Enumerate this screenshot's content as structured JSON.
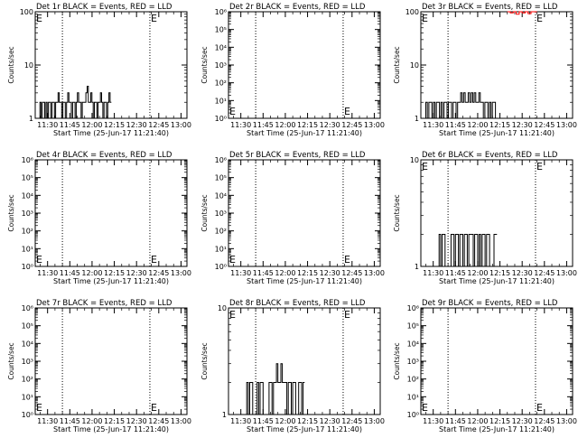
{
  "colors": {
    "events": "#000000",
    "lld": "#ff0000",
    "background": "#ffffff"
  },
  "chart_data": [
    {
      "type": "line",
      "title": "Det 1r BLACK = Events, RED = LLD",
      "xlabel": "Start Time (25-Jun-17 11:21:40)",
      "ylabel": "Counts/sec",
      "yscale": "log",
      "ylim": [
        1,
        100
      ],
      "yticks": [
        "1",
        "10",
        "100"
      ],
      "xticks": [
        "11:30",
        "11:45",
        "12:00",
        "12:15",
        "12:30",
        "12:45",
        "13:00"
      ],
      "marker": "E",
      "series": [
        {
          "values": [
            1,
            2,
            1,
            2,
            2,
            1,
            2,
            1,
            2,
            2,
            1,
            2,
            2,
            1,
            2,
            2,
            3,
            2,
            2,
            1,
            2,
            2,
            1,
            2,
            3,
            2,
            2,
            1,
            2,
            2,
            1,
            2,
            3,
            2,
            2,
            1,
            2,
            2,
            2,
            3,
            4,
            2,
            2,
            3,
            2,
            1,
            2,
            2,
            1,
            2,
            2,
            3,
            2,
            1,
            2,
            2,
            1,
            2,
            3,
            2
          ]
        },
        {
          "values": []
        }
      ]
    },
    {
      "type": "line",
      "title": "Det 2r BLACK = Events, RED = LLD",
      "xlabel": "Start Time (25-Jun-17 11:21:40)",
      "ylabel": "Counts/sec",
      "yscale": "log",
      "ylim": [
        1,
        1000000
      ],
      "yticks": [
        "10⁰",
        "10¹",
        "10²",
        "10³",
        "10⁴",
        "10⁵",
        "10⁶"
      ],
      "xticks": [
        "11:30",
        "11:45",
        "12:00",
        "12:15",
        "12:30",
        "12:45",
        "13:00"
      ],
      "marker": "E",
      "series": [
        {
          "values": []
        },
        {
          "values": []
        }
      ]
    },
    {
      "type": "line",
      "title": "Det 3r BLACK = Events, RED = LLD",
      "xlabel": "Start Time (25-Jun-17 11:21:40)",
      "ylabel": "Counts/sec",
      "yscale": "log",
      "ylim": [
        1,
        100
      ],
      "yticks": [
        "1",
        "10",
        "100"
      ],
      "xticks": [
        "11:30",
        "11:45",
        "12:00",
        "12:15",
        "12:30",
        "12:45",
        "13:00"
      ],
      "marker": "E",
      "series": [
        {
          "values": [
            1,
            2,
            1,
            2,
            2,
            1,
            2,
            1,
            2,
            2,
            1,
            2,
            1,
            2,
            2,
            1,
            2,
            2,
            1,
            2,
            2,
            1,
            2,
            2,
            3,
            2,
            3,
            2,
            2,
            3,
            2,
            3,
            2,
            3,
            2,
            2,
            3,
            2,
            2,
            1,
            2,
            2,
            1,
            2,
            1,
            2,
            2,
            1
          ]
        },
        {
          "values": [
            100,
            95,
            100,
            90,
            100,
            95,
            100,
            92,
            100,
            100
          ]
        }
      ]
    },
    {
      "type": "line",
      "title": "Det 4r BLACK = Events, RED = LLD",
      "xlabel": "Start Time (25-Jun-17 11:21:40)",
      "ylabel": "Counts/sec",
      "yscale": "log",
      "ylim": [
        1,
        1000000
      ],
      "yticks": [
        "10⁰",
        "10¹",
        "10²",
        "10³",
        "10⁴",
        "10⁵",
        "10⁶"
      ],
      "xticks": [
        "11:30",
        "11:45",
        "12:00",
        "12:15",
        "12:30",
        "12:45",
        "13:00"
      ],
      "marker": "E",
      "series": [
        {
          "values": []
        },
        {
          "values": []
        }
      ]
    },
    {
      "type": "line",
      "title": "Det 5r BLACK = Events, RED = LLD",
      "xlabel": "Start Time (25-Jun-17 11:21:40)",
      "ylabel": "Counts/sec",
      "yscale": "log",
      "ylim": [
        1,
        1000000
      ],
      "yticks": [
        "10⁰",
        "10¹",
        "10²",
        "10³",
        "10⁴",
        "10⁵",
        "10⁶"
      ],
      "xticks": [
        "11:30",
        "11:45",
        "12:00",
        "12:15",
        "12:30",
        "12:45",
        "13:00"
      ],
      "marker": "E",
      "series": [
        {
          "values": []
        },
        {
          "values": []
        }
      ]
    },
    {
      "type": "line",
      "title": "Det 6r BLACK = Events, RED = LLD",
      "xlabel": "Start Time (25-Jun-17 11:21:40)",
      "ylabel": "Counts/sec",
      "yscale": "log",
      "ylim": [
        1,
        10
      ],
      "yticks": [
        "1",
        "10"
      ],
      "xticks": [
        "11:30",
        "11:45",
        "12:00",
        "12:15",
        "12:30",
        "12:45",
        "13:00"
      ],
      "marker": "E",
      "series": [
        {
          "values": [
            1,
            2,
            1,
            2,
            2,
            1,
            1,
            1,
            1,
            2,
            2,
            1,
            2,
            2,
            1,
            2,
            2,
            1,
            2,
            2,
            1,
            2,
            2,
            2,
            1,
            2,
            2,
            1,
            2,
            1,
            2,
            2,
            1,
            2,
            2,
            1,
            1,
            1,
            2,
            2
          ]
        },
        {
          "values": []
        }
      ]
    },
    {
      "type": "line",
      "title": "Det 7r BLACK = Events, RED = LLD",
      "xlabel": "Start Time (25-Jun-17 11:21:40)",
      "ylabel": "Counts/sec",
      "yscale": "log",
      "ylim": [
        1,
        1000000
      ],
      "yticks": [
        "10⁰",
        "10¹",
        "10²",
        "10³",
        "10⁴",
        "10⁵",
        "10⁶"
      ],
      "xticks": [
        "11:30",
        "11:45",
        "12:00",
        "12:15",
        "12:30",
        "12:45",
        "13:00"
      ],
      "marker": "E",
      "series": [
        {
          "values": []
        },
        {
          "values": []
        }
      ]
    },
    {
      "type": "line",
      "title": "Det 8r BLACK = Events, RED = LLD",
      "xlabel": "Start Time (25-Jun-17 11:21:40)",
      "ylabel": "Counts/sec",
      "yscale": "log",
      "ylim": [
        1,
        10
      ],
      "yticks": [
        "1",
        "10"
      ],
      "xticks": [
        "11:30",
        "11:45",
        "12:00",
        "12:15",
        "12:30",
        "12:45",
        "13:00"
      ],
      "marker": "E",
      "series": [
        {
          "values": [
            1,
            2,
            1,
            2,
            2,
            1,
            1,
            1,
            2,
            1,
            2,
            2,
            1,
            1,
            1,
            1,
            2,
            2,
            1,
            2,
            2,
            3,
            2,
            2,
            3,
            2,
            2,
            2,
            1,
            2,
            2,
            1,
            2,
            2,
            1,
            1,
            2,
            2,
            1,
            2
          ]
        },
        {
          "values": []
        }
      ]
    },
    {
      "type": "line",
      "title": "Det 9r BLACK = Events, RED = LLD",
      "xlabel": "Start Time (25-Jun-17 11:21:40)",
      "ylabel": "Counts/sec",
      "yscale": "log",
      "ylim": [
        1,
        1000000
      ],
      "yticks": [
        "10⁰",
        "10¹",
        "10²",
        "10³",
        "10⁴",
        "10⁵",
        "10⁶"
      ],
      "xticks": [
        "11:30",
        "11:45",
        "12:00",
        "12:15",
        "12:30",
        "12:45",
        "13:00"
      ],
      "marker": "E",
      "series": [
        {
          "values": []
        },
        {
          "values": []
        }
      ]
    }
  ]
}
